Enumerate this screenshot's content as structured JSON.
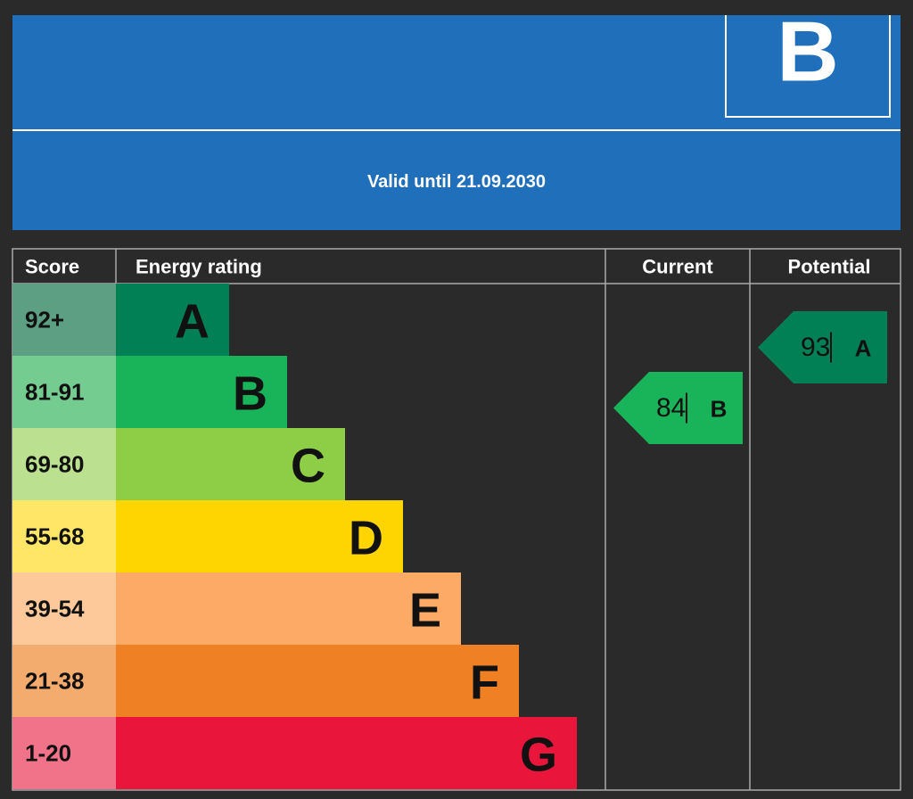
{
  "header": {
    "rating": "B",
    "valid": "Valid until 21.09.2030"
  },
  "table": {
    "headers": [
      "Score",
      "Energy rating",
      "Current",
      "Potential"
    ],
    "rows": [
      {
        "score": "92+",
        "band": "A"
      },
      {
        "score": "81-91",
        "band": "B"
      },
      {
        "score": "69-80",
        "band": "C"
      },
      {
        "score": "55-68",
        "band": "D"
      },
      {
        "score": "39-54",
        "band": "E"
      },
      {
        "score": "21-38",
        "band": "F"
      },
      {
        "score": "1-20",
        "band": "G"
      }
    ],
    "current": {
      "score": 84,
      "band": "B"
    },
    "potential": {
      "score": 93,
      "band": "A"
    }
  }
}
